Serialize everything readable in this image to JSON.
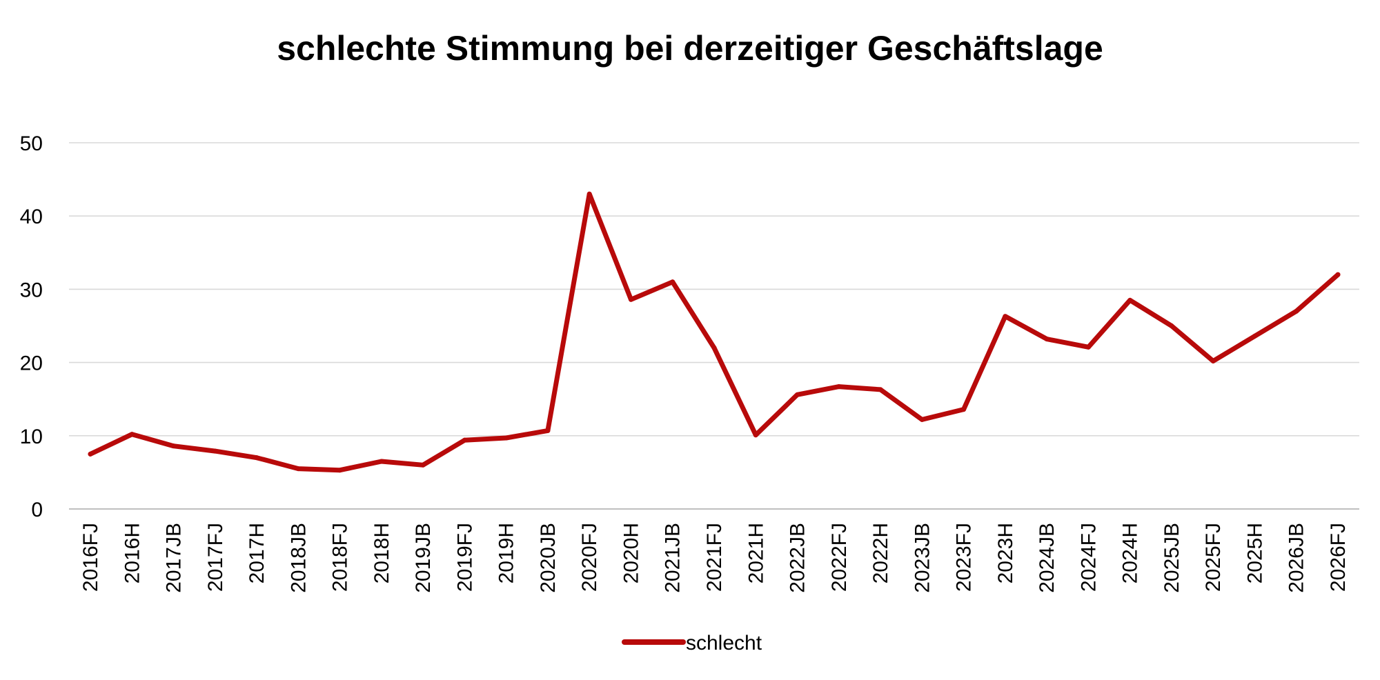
{
  "chart_data": {
    "type": "line",
    "title": "schlechte Stimmung bei derzeitiger Geschäftslage",
    "xlabel": "",
    "ylabel": "",
    "ylim": [
      0,
      50
    ],
    "yticks": [
      0,
      10,
      20,
      30,
      40,
      50
    ],
    "grid": true,
    "legend_position": "bottom",
    "categories": [
      "2016FJ",
      "2016H",
      "2017JB",
      "2017FJ",
      "2017H",
      "2018JB",
      "2018FJ",
      "2018H",
      "2019JB",
      "2019FJ",
      "2019H",
      "2020JB",
      "2020FJ",
      "2020H",
      "2021JB",
      "2021FJ",
      "2021H",
      "2022JB",
      "2022FJ",
      "2022H",
      "2023JB",
      "2023FJ",
      "2023H",
      "2024JB",
      "2024FJ",
      "2024H",
      "2025JB",
      "2025FJ",
      "2025H",
      "2026JB",
      "2026FJ"
    ],
    "series": [
      {
        "name": "schlecht",
        "color": "#b80a0a",
        "values": [
          7.5,
          10.2,
          8.6,
          7.9,
          7.0,
          5.5,
          5.3,
          6.5,
          6.0,
          9.4,
          9.7,
          10.7,
          43.0,
          28.6,
          31.0,
          22.0,
          10.1,
          15.6,
          16.7,
          16.3,
          12.2,
          13.6,
          26.3,
          23.2,
          22.1,
          28.5,
          25.0,
          20.2,
          23.6,
          27.0,
          32.0
        ]
      }
    ]
  }
}
